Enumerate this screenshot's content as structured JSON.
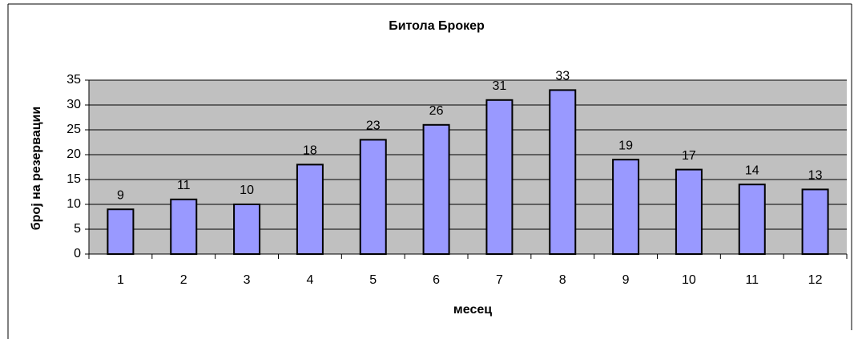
{
  "chart_data": {
    "type": "bar",
    "title": "Битола Брокер",
    "x_label": "месец",
    "y_label": "број на резервации",
    "categories": [
      "1",
      "2",
      "3",
      "4",
      "5",
      "6",
      "7",
      "8",
      "9",
      "10",
      "11",
      "12"
    ],
    "values": [
      9,
      11,
      10,
      18,
      23,
      26,
      31,
      33,
      19,
      17,
      14,
      13
    ],
    "color": "#9999ff",
    "ylim": [
      0,
      35
    ],
    "yticks": [
      0,
      5,
      10,
      15,
      20,
      25,
      30,
      35
    ],
    "grid": true
  }
}
